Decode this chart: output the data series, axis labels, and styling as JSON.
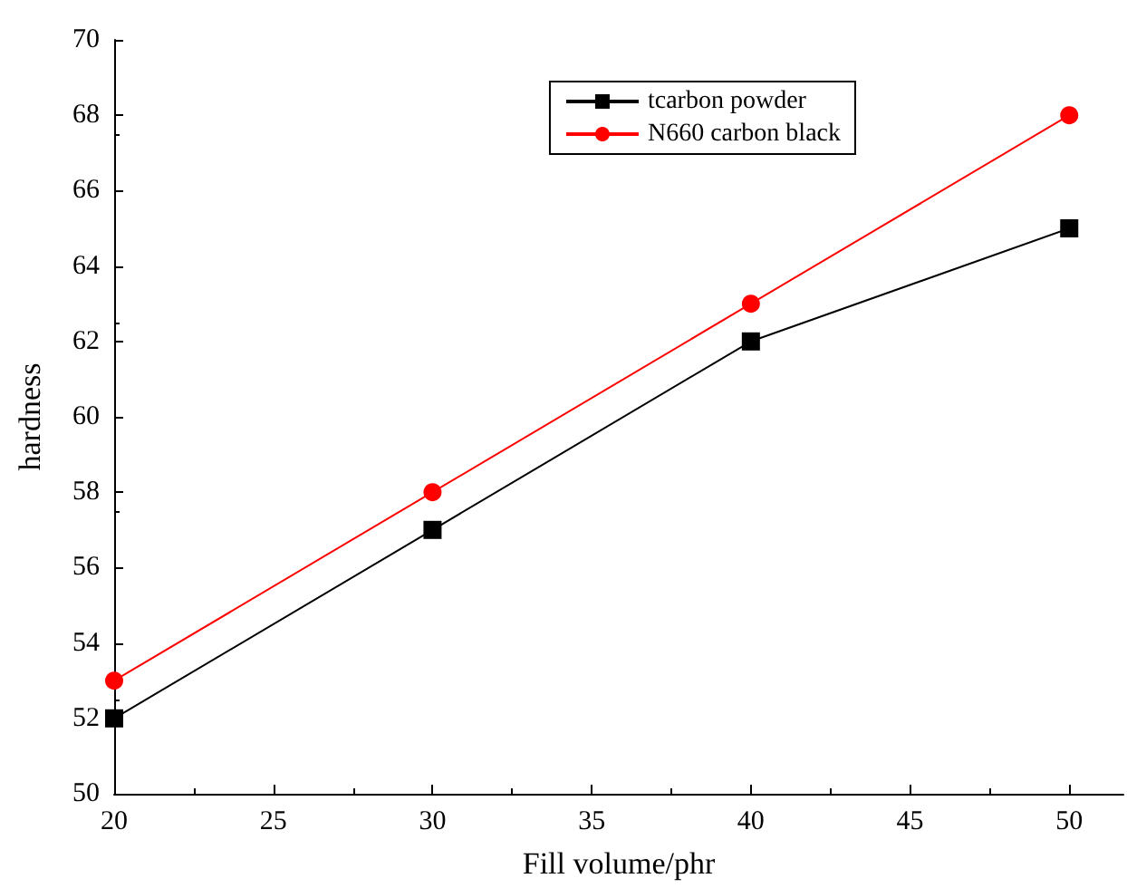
{
  "chart_data": {
    "type": "line",
    "xlabel": "Fill volume/phr",
    "ylabel": "hardness",
    "x": [
      20,
      30,
      40,
      50
    ],
    "series": [
      {
        "name": "tcarbon powder",
        "color": "#000000",
        "marker": "square",
        "values": [
          52,
          57,
          62,
          65
        ]
      },
      {
        "name": "N660 carbon black",
        "color": "#ff0000",
        "marker": "circle",
        "values": [
          53,
          58,
          63,
          68
        ]
      }
    ],
    "xlim": [
      20,
      51.7
    ],
    "xticks": [
      20,
      25,
      30,
      35,
      40,
      45,
      50
    ],
    "ylim": [
      50,
      70
    ],
    "yticks": [
      50,
      52,
      54,
      56,
      58,
      60,
      62,
      64,
      66,
      68,
      70
    ],
    "legend": "top right",
    "grid": false,
    "line_style": "solid"
  }
}
